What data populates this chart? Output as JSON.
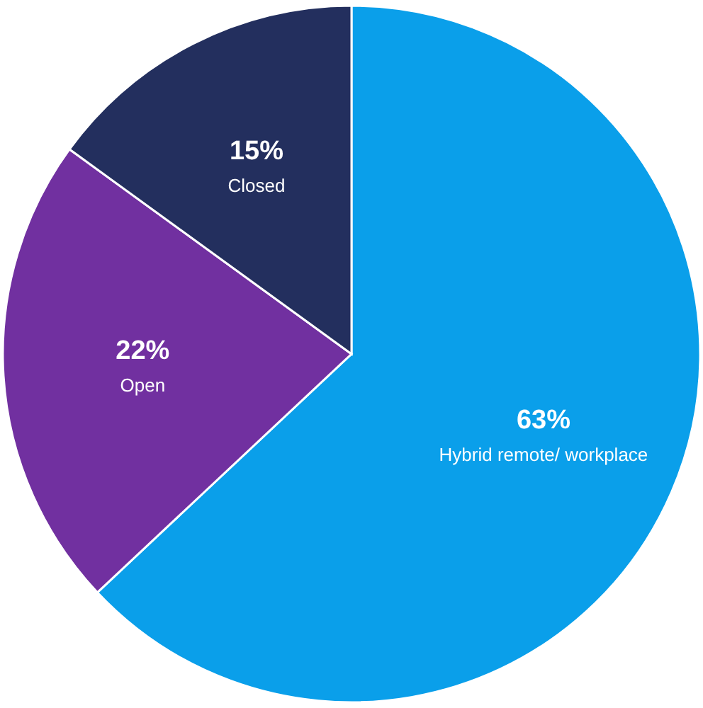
{
  "chart_data": {
    "type": "pie",
    "categories": [
      "Hybrid remote/ workplace",
      "Open",
      "Closed"
    ],
    "values": [
      63,
      22,
      15
    ],
    "colors": [
      "#0a9fea",
      "#7130a0",
      "#232f5e"
    ],
    "value_labels": [
      "63%",
      "22%",
      "15%"
    ]
  }
}
